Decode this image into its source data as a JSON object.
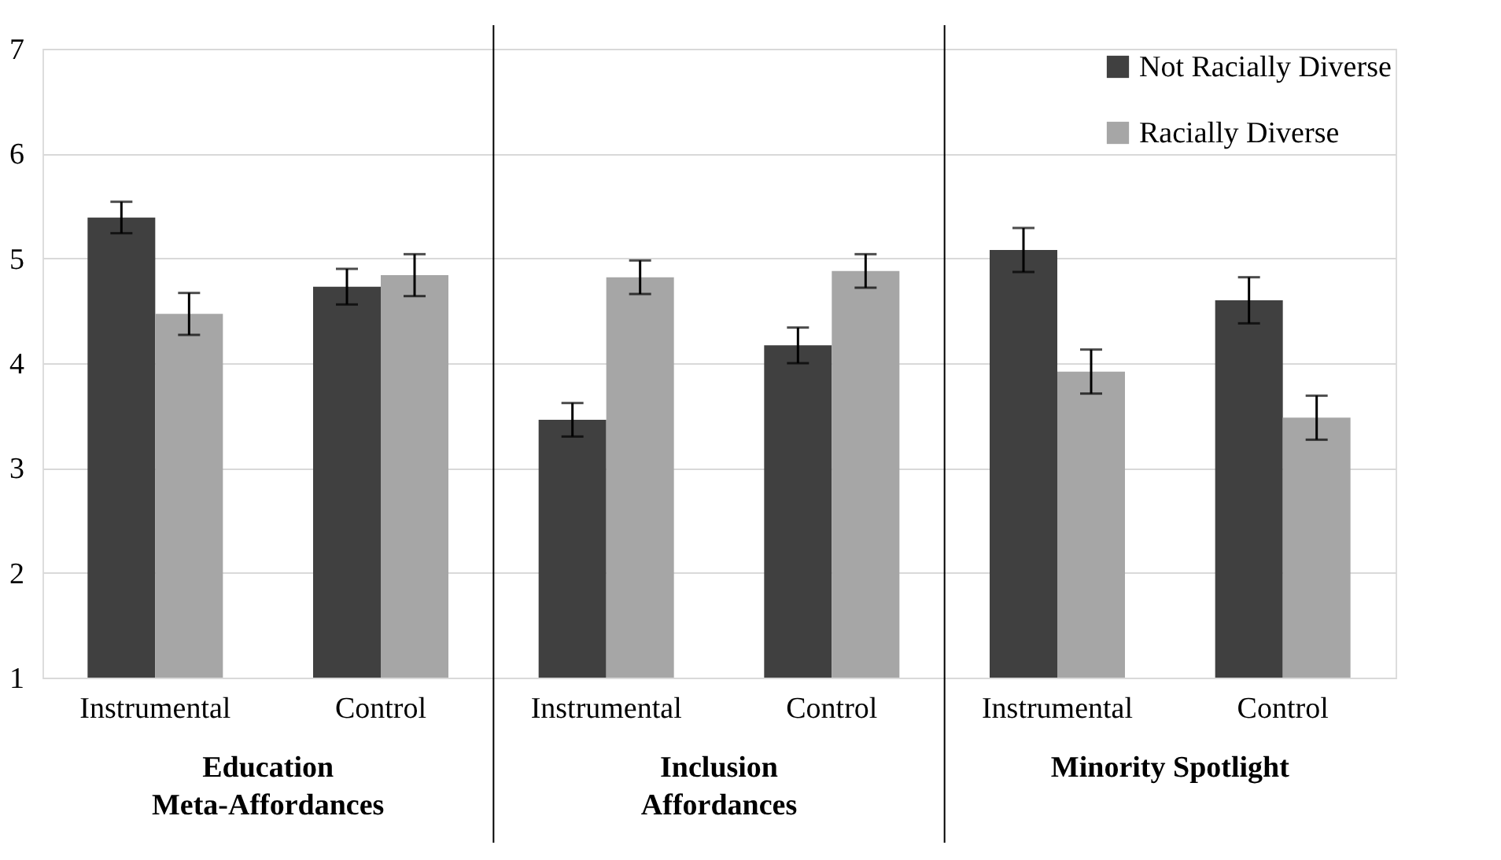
{
  "chart_data": {
    "type": "bar",
    "categories": [
      "Instrumental",
      "Control",
      "Instrumental",
      "Control",
      "Instrumental",
      "Control"
    ],
    "series": [
      {
        "name": "Not Racially Diverse",
        "color": "#404040",
        "values": [
          5.39,
          4.73,
          3.46,
          4.17,
          5.08,
          4.6
        ],
        "errors": [
          0.15,
          0.17,
          0.16,
          0.17,
          0.21,
          0.22
        ]
      },
      {
        "name": "Racially Diverse",
        "color": "#a6a6a6",
        "values": [
          4.47,
          4.84,
          4.82,
          4.88,
          3.92,
          3.48
        ],
        "errors": [
          0.2,
          0.2,
          0.16,
          0.16,
          0.21,
          0.21
        ]
      }
    ],
    "annotations": [
      "Education\nMeta-Affordances",
      "Inclusion\nAffordances",
      "Minority Spotlight"
    ],
    "ylim": [
      1,
      7
    ],
    "yticks": [
      1,
      2,
      3,
      4,
      5,
      6,
      7
    ],
    "grid": "y",
    "legend": "top right"
  }
}
